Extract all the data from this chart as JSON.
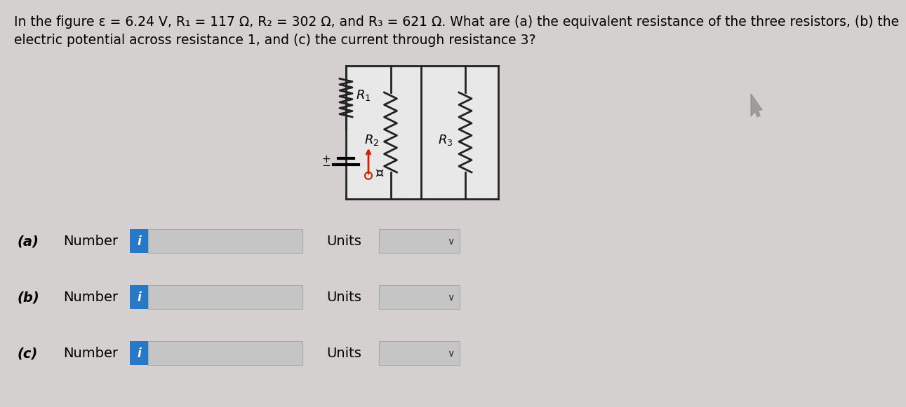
{
  "bg_color": "#d3d0cf",
  "title_line1": "In the figure ε = 6.24 V, R₁ = 117 Ω, R₂ = 302 Ω, and R₃ = 621 Ω. What are (a) the equivalent resistance of the three resistors, (b) the",
  "title_line2": "electric potential across resistance 1, and (c) the current through resistance 3?",
  "parts": [
    "(a)",
    "(b)",
    "(c)"
  ],
  "part_labels": [
    "Number",
    "Number",
    "Number"
  ],
  "units_label": "Units",
  "info_color": "#2878c8",
  "input_box_color": "#c8c8c8",
  "units_box_color": "#d0d0d0",
  "circuit_border_color": "#222222",
  "resistor_color": "#222222",
  "emf_arrow_color": "#cc2200",
  "cursor_color": "#444444"
}
